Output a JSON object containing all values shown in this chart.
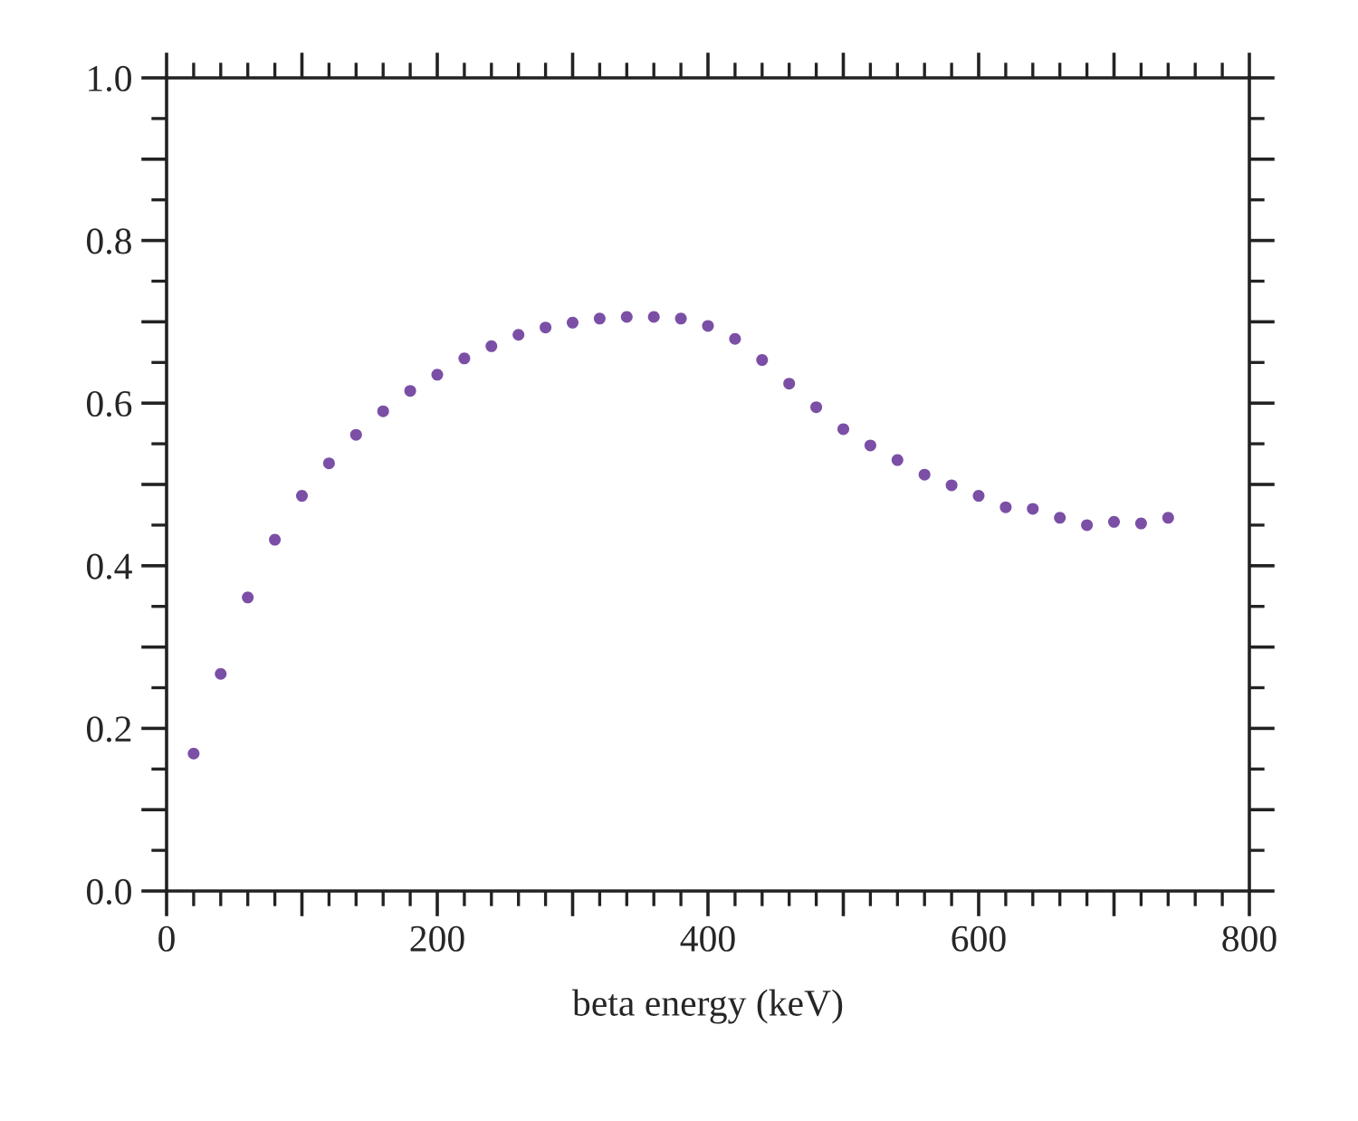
{
  "chart_data": {
    "type": "scatter",
    "xlabel": "beta energy (keV)",
    "x": [
      20,
      40,
      60,
      80,
      100,
      120,
      140,
      160,
      180,
      200,
      220,
      240,
      260,
      280,
      300,
      320,
      340,
      360,
      380,
      400,
      420,
      440,
      460,
      480,
      500,
      520,
      540,
      560,
      580,
      600,
      620,
      640,
      660,
      680,
      700,
      720,
      740
    ],
    "series": [
      {
        "color": "#7b4fa6",
        "values": [
          0.169,
          0.267,
          0.361,
          0.432,
          0.486,
          0.526,
          0.561,
          0.59,
          0.615,
          0.635,
          0.655,
          0.67,
          0.684,
          0.693,
          0.699,
          0.704,
          0.706,
          0.706,
          0.704,
          0.695,
          0.679,
          0.653,
          0.624,
          0.595,
          0.568,
          0.548,
          0.53,
          0.512,
          0.499,
          0.486,
          0.472,
          0.47,
          0.459,
          0.45,
          0.454,
          0.452,
          0.459
        ]
      }
    ],
    "xlim": [
      0,
      800
    ],
    "ylim": [
      0,
      1
    ],
    "xticks": [
      0,
      {
        "value": 100,
        "label": null
      },
      200,
      {
        "value": 300,
        "label": null
      },
      400,
      {
        "value": 500,
        "label": null
      },
      600,
      {
        "value": 700,
        "label": null
      },
      800
    ],
    "yticks": [
      {
        "value": 0,
        "label": "0.0"
      },
      {
        "value": 0.1,
        "label": null
      },
      {
        "value": 0.2,
        "label": "0.2"
      },
      {
        "value": 0.3,
        "label": null
      },
      {
        "value": 0.4,
        "label": "0.4"
      },
      {
        "value": 0.5,
        "label": null
      },
      {
        "value": 0.6,
        "label": "0.6"
      },
      {
        "value": 0.7,
        "label": null
      },
      {
        "value": 0.8,
        "label": "0.8"
      },
      {
        "value": 0.9,
        "label": null
      },
      {
        "value": 1.0,
        "label": "1.0"
      }
    ],
    "grid": false,
    "marker": "circle"
  }
}
